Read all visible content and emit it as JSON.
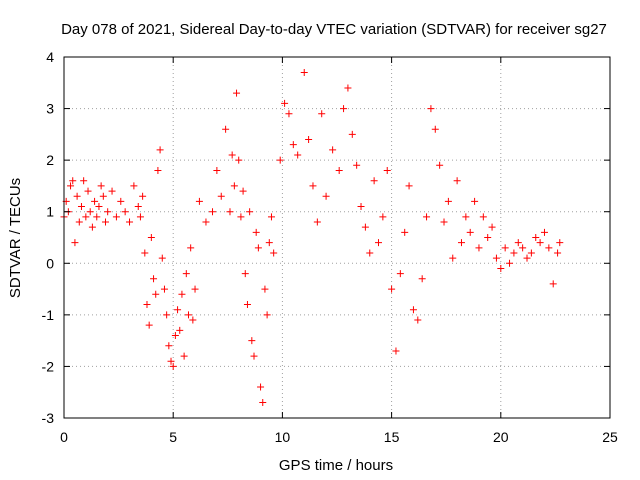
{
  "chart_data": {
    "type": "scatter",
    "title": "Day 078 of 2021, Sidereal Day-to-day VTEC variation (SDTVAR) for receiver sg27",
    "xlabel": "GPS time / hours",
    "ylabel": "SDTVAR / TECUs",
    "xlim": [
      0,
      25
    ],
    "ylim": [
      -3,
      4
    ],
    "xticks": [
      "0",
      "5",
      "10",
      "15",
      "20",
      "25"
    ],
    "yticks": [
      "-3",
      "-2",
      "-1",
      "0",
      "1",
      "2",
      "3",
      "4"
    ],
    "grid": true,
    "legend": "none",
    "marker": "+",
    "color": "#ff0000",
    "series": [
      {
        "name": "SDTVAR",
        "x": [
          0.0,
          0.1,
          0.2,
          0.3,
          0.4,
          0.5,
          0.6,
          0.7,
          0.8,
          0.9,
          1.0,
          1.1,
          1.2,
          1.3,
          1.4,
          1.5,
          1.6,
          1.7,
          1.8,
          1.9,
          2.0,
          2.2,
          2.4,
          2.6,
          2.8,
          3.0,
          3.2,
          3.4,
          3.5,
          3.6,
          3.7,
          3.8,
          3.9,
          4.0,
          4.1,
          4.2,
          4.3,
          4.4,
          4.5,
          4.6,
          4.7,
          4.8,
          4.9,
          5.0,
          5.1,
          5.2,
          5.3,
          5.4,
          5.5,
          5.6,
          5.7,
          5.8,
          5.9,
          6.0,
          6.2,
          6.5,
          6.8,
          7.0,
          7.2,
          7.4,
          7.6,
          7.7,
          7.8,
          7.9,
          8.0,
          8.1,
          8.2,
          8.3,
          8.4,
          8.5,
          8.6,
          8.7,
          8.8,
          8.9,
          9.0,
          9.1,
          9.2,
          9.3,
          9.4,
          9.5,
          9.6,
          9.9,
          10.1,
          10.3,
          10.5,
          10.7,
          11.0,
          11.2,
          11.4,
          11.6,
          11.8,
          12.0,
          12.3,
          12.6,
          12.8,
          13.0,
          13.2,
          13.4,
          13.6,
          13.8,
          14.0,
          14.2,
          14.4,
          14.6,
          14.8,
          15.0,
          15.2,
          15.4,
          15.6,
          15.8,
          16.0,
          16.2,
          16.4,
          16.6,
          16.8,
          17.0,
          17.2,
          17.4,
          17.6,
          17.8,
          18.0,
          18.2,
          18.4,
          18.6,
          18.8,
          19.0,
          19.2,
          19.4,
          19.6,
          19.8,
          20.0,
          20.2,
          20.4,
          20.6,
          20.8,
          21.0,
          21.2,
          21.4,
          21.6,
          21.8,
          22.0,
          22.2,
          22.4,
          22.6,
          22.7
        ],
        "y": [
          0.9,
          1.2,
          1.0,
          1.5,
          1.6,
          0.4,
          1.3,
          0.8,
          1.1,
          1.6,
          0.9,
          1.4,
          1.0,
          0.7,
          1.2,
          0.9,
          1.1,
          1.5,
          1.3,
          0.8,
          1.0,
          1.4,
          0.9,
          1.2,
          1.0,
          0.8,
          1.5,
          1.1,
          0.9,
          1.3,
          0.2,
          -0.8,
          -1.2,
          0.5,
          -0.3,
          -0.6,
          1.8,
          2.2,
          0.1,
          -0.5,
          -1.0,
          -1.6,
          -1.9,
          -2.0,
          -1.4,
          -0.9,
          -1.3,
          -0.6,
          -1.8,
          -0.2,
          -1.0,
          0.3,
          -1.1,
          -0.5,
          1.2,
          0.8,
          1.0,
          1.8,
          1.3,
          2.6,
          1.0,
          2.1,
          1.5,
          3.3,
          2.0,
          0.9,
          1.4,
          -0.2,
          -0.8,
          1.0,
          -1.5,
          -1.8,
          0.6,
          0.3,
          -2.4,
          -2.7,
          -0.5,
          -1.0,
          0.4,
          0.9,
          0.2,
          2.0,
          3.1,
          2.9,
          2.3,
          2.1,
          3.7,
          2.4,
          1.5,
          0.8,
          2.9,
          1.3,
          2.2,
          1.8,
          3.0,
          3.4,
          2.5,
          1.9,
          1.1,
          0.7,
          0.2,
          1.6,
          0.4,
          0.9,
          1.8,
          -0.5,
          -1.7,
          -0.2,
          0.6,
          1.5,
          -0.9,
          -1.1,
          -0.3,
          0.9,
          3.0,
          2.6,
          1.9,
          0.8,
          1.2,
          0.1,
          1.6,
          0.4,
          0.9,
          0.6,
          1.2,
          0.3,
          0.9,
          0.5,
          0.7,
          0.1,
          -0.1,
          0.3,
          0.0,
          0.2,
          0.4,
          0.3,
          0.1,
          0.2,
          0.5,
          0.4,
          0.6,
          0.3,
          -0.4,
          0.2,
          0.4
        ]
      }
    ]
  }
}
